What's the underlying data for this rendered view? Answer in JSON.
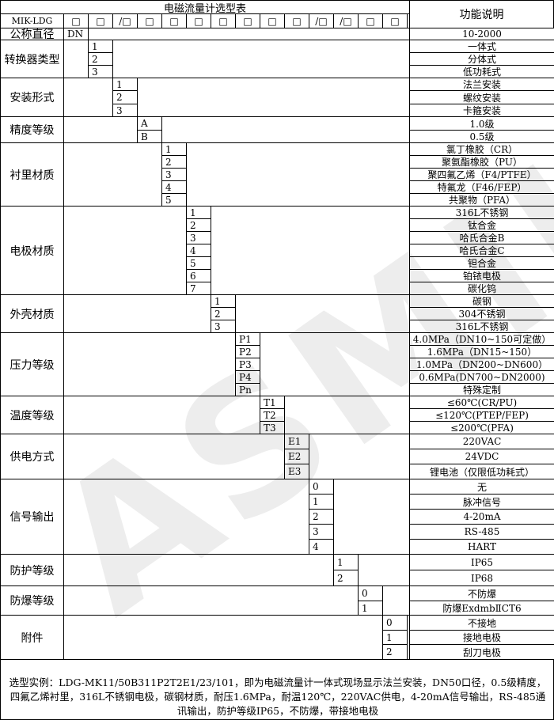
{
  "header": {
    "title": "电磁流量计选型表",
    "desc_header": "功能说明",
    "model": "MIK-LDG",
    "boxes": [
      "□",
      "□",
      "/□",
      "□",
      "□",
      "□",
      "□",
      "□",
      "□",
      "□",
      "/□",
      "/□",
      "□",
      "□"
    ]
  },
  "groups": [
    {
      "label": "公称直径",
      "codes": [
        "DN"
      ],
      "descs": [
        "10-2000"
      ]
    },
    {
      "label": "转换器类型",
      "codes": [
        "1",
        "2",
        "3"
      ],
      "descs": [
        "一体式",
        "分体式",
        "低功耗式"
      ]
    },
    {
      "label": "安装形式",
      "codes": [
        "1",
        "2",
        "3"
      ],
      "descs": [
        "法兰安装",
        "螺纹安装",
        "卡箍安装"
      ]
    },
    {
      "label": "精度等级",
      "codes": [
        "A",
        "B"
      ],
      "descs": [
        "1.0级",
        "0.5级"
      ]
    },
    {
      "label": "衬里材质",
      "codes": [
        "1",
        "2",
        "3",
        "4",
        "5"
      ],
      "descs": [
        "氯丁橡胶（CR）",
        "聚氨酯橡胶（PU）",
        "聚四氟乙烯（F4/PTFE）",
        "特氟龙（F46/FEP）",
        "共聚物（PFA）"
      ]
    },
    {
      "label": "电极材质",
      "codes": [
        "1",
        "2",
        "3",
        "4",
        "5",
        "6",
        "7"
      ],
      "descs": [
        "316L不锈钢",
        "钛合金",
        "哈氏合金B",
        "哈氏合金C",
        "钽合金",
        "铂铱电极",
        "碳化钨"
      ]
    },
    {
      "label": "外壳材质",
      "codes": [
        "1",
        "2",
        "3"
      ],
      "descs": [
        "碳钢",
        "304不锈钢",
        "316L不锈钢"
      ]
    },
    {
      "label": "压力等级",
      "codes": [
        "P1",
        "P2",
        "P3",
        "P4",
        "Pn"
      ],
      "descs": [
        "4.0MPa（DN10~150可定做）",
        "1.6MPa（DN15~150）",
        "1.0MPa（DN200~DN600）",
        "0.6MPa(DN700~DN2000)",
        "特殊定制"
      ]
    },
    {
      "label": "温度等级",
      "codes": [
        "T1",
        "T2",
        "T3"
      ],
      "descs": [
        "≤60℃(CR/PU)",
        "≤120℃(PTEP/FEP)",
        "≤200℃(PFA)"
      ]
    },
    {
      "label": "供电方式",
      "codes": [
        "E1",
        "E2",
        "E3"
      ],
      "descs": [
        "220VAC",
        "24VDC",
        "锂电池（仅限低功耗式）"
      ]
    },
    {
      "label": "信号输出",
      "codes": [
        "0",
        "1",
        "2",
        "3",
        "4"
      ],
      "descs": [
        "无",
        "脉冲信号",
        "4-20mA",
        "RS-485",
        "HART"
      ]
    },
    {
      "label": "防护等级",
      "codes": [
        "1",
        "2"
      ],
      "descs": [
        "IP65",
        "IP68"
      ]
    },
    {
      "label": "防爆等级",
      "codes": [
        "0",
        "1"
      ],
      "descs": [
        "不防爆",
        "防爆ExdmbⅡCT6"
      ]
    },
    {
      "label": "附件",
      "codes": [
        "0",
        "1",
        "2"
      ],
      "descs": [
        "不接地",
        "接地电极",
        "刮刀电极"
      ]
    }
  ],
  "example": "选型实例：LDG-MK11/50B311P2T2E1/23/101，即为电磁流量计一体式现场显示法兰安装，DN50口径，0.5级精度，四氟乙烯衬里，316L不锈钢电极，碳钢材质，耐压1.6MPa，耐温120℃，220VAC供电，4-20mA信号输出，RS-485通讯输出，防护等级IP65，不防爆，带接地电极",
  "watermark": "ASMIK"
}
